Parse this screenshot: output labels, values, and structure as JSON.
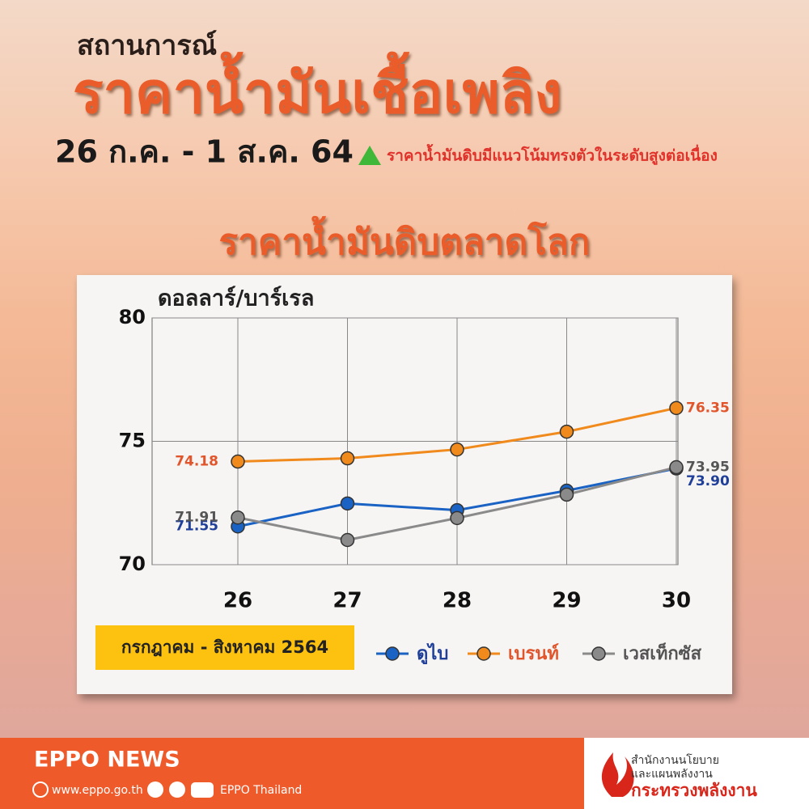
{
  "header": {
    "kicker": "สถานการณ์",
    "title": "ราคาน้ำมันเชื้อเพลิง",
    "date": "26 ก.ค. - 1 ส.ค. 64",
    "trend": "ราคาน้ำมันดิบมีแนวโน้มทรงตัวในระดับสูงต่อเนื่อง"
  },
  "chart_data": {
    "type": "line",
    "title": "ราคาน้ำมันดิบตลาดโลก",
    "y_label": "ดอลลาร์/บาร์เรล",
    "period": "กรกฎาคม - สิงหาคม 2564",
    "categories": [
      "26",
      "27",
      "28",
      "29",
      "30"
    ],
    "series": [
      {
        "name": "ดูไบ",
        "color": "#1a63c4",
        "label_color": "#1f3f99",
        "values": [
          71.55,
          72.48,
          72.21,
          73.0,
          73.9
        ],
        "value_labels": [
          "71.55",
          null,
          null,
          null,
          "73.90"
        ]
      },
      {
        "name": "เบรนท์",
        "color": "#f08a1c",
        "label_color": "#e0552b",
        "values": [
          74.18,
          74.31,
          74.67,
          75.39,
          76.35
        ],
        "value_labels": [
          "74.18",
          null,
          null,
          null,
          "76.35"
        ]
      },
      {
        "name": "เวสเท็กซัส",
        "color": "#8a8a8a",
        "label_color": "#555555",
        "values": [
          71.91,
          71.0,
          71.89,
          72.84,
          73.95
        ],
        "value_labels": [
          "71.91",
          null,
          null,
          null,
          "73.95"
        ]
      }
    ],
    "ylim": [
      70,
      80
    ],
    "yticks": [
      70,
      75,
      80
    ],
    "grid": true
  },
  "footer": {
    "brand": "EPPO NEWS",
    "website": "www.eppo.go.th",
    "social": "EPPO Thailand",
    "org_line1": "สำนักงานนโยบาย",
    "org_line2": "และแผนพลังงาน",
    "ministry": "กระทรวงพลังงาน"
  }
}
